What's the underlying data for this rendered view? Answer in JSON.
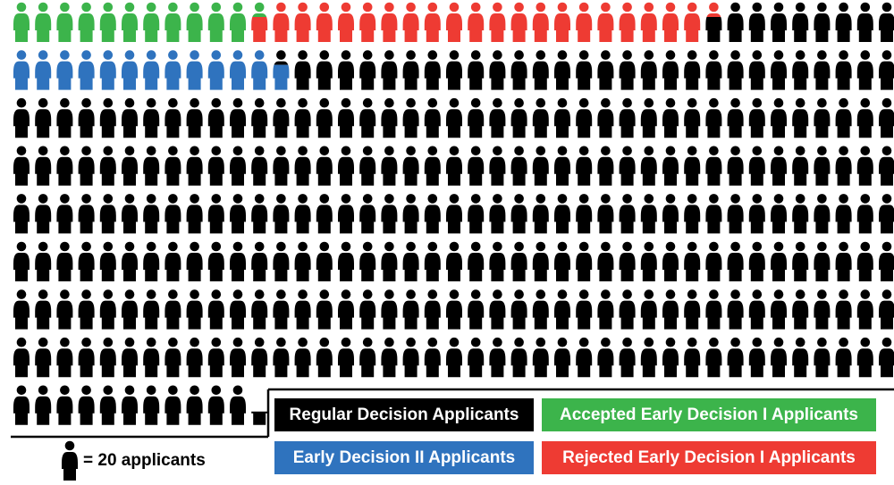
{
  "chart_data": {
    "type": "pictograph",
    "unit_value": 20,
    "unit_label": "applicants",
    "key_text": "= 20 applicants",
    "categories": [
      {
        "name": "Accepted Early Decision I Applicants",
        "icons": 11.5,
        "applicants": 230,
        "color": "#3cb44b"
      },
      {
        "name": "Rejected Early Decision I Applicants",
        "icons": 20.5,
        "applicants": 410,
        "color": "#ee3b33"
      },
      {
        "name": "Early Decision II Applicants",
        "icons": 12.5,
        "applicants": 250,
        "color": "#2f73be"
      },
      {
        "name": "Regular Decision Applicants",
        "icons": 278.5,
        "applicants": 5570,
        "color": "#000000"
      }
    ],
    "legend": [
      {
        "label": "Regular Decision Applicants",
        "color": "#000000"
      },
      {
        "label": "Accepted Early Decision I Applicants",
        "color": "#3cb44b"
      },
      {
        "label": "Early Decision II Applicants",
        "color": "#2f73be"
      },
      {
        "label": "Rejected Early Decision I Applicants",
        "color": "#ee3b33"
      }
    ],
    "title": ""
  }
}
